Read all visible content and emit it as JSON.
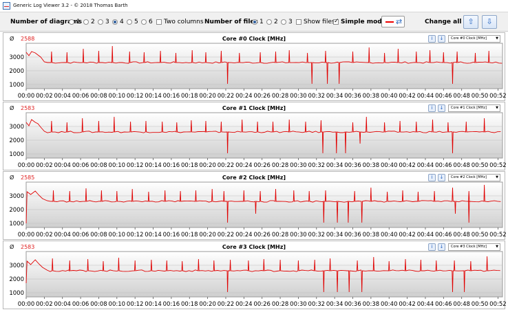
{
  "window": {
    "title": "Generic Log Viewer 3.2 - © 2018 Thomas Barth"
  },
  "toolbar": {
    "num_diagrams_label": "Number of diagrams",
    "diagram_options": [
      "1",
      "2",
      "3",
      "4",
      "5",
      "6"
    ],
    "diagram_selected": "4",
    "two_columns_label": "Two columns",
    "two_columns_checked": false,
    "num_files_label": "Number of files",
    "file_options": [
      "1",
      "2",
      "3"
    ],
    "file_selected": "1",
    "show_files_label": "Show files",
    "show_files_checked": false,
    "simple_mode_label": "Simple mode",
    "simple_mode_checked": true,
    "line_color": "#e00000",
    "change_all_label": "Change all",
    "icons": {
      "color": "swap-arrows-icon",
      "up": "arrow-up-icon",
      "down": "arrow-down-icon"
    }
  },
  "panels": [
    {
      "avg_symbol": "Ø",
      "avg": "2588",
      "title": "Core #0 Clock [MHz]",
      "selector": "Core #0 Clock [MHz]"
    },
    {
      "avg_symbol": "Ø",
      "avg": "2583",
      "title": "Core #1 Clock [MHz]",
      "selector": "Core #1 Clock [MHz]"
    },
    {
      "avg_symbol": "Ø",
      "avg": "2585",
      "title": "Core #2 Clock [MHz]",
      "selector": "Core #2 Clock [MHz]"
    },
    {
      "avg_symbol": "Ø",
      "avg": "2583",
      "title": "Core #3 Clock [MHz]",
      "selector": "Core #3 Clock [MHz]"
    }
  ],
  "chart_data": [
    {
      "type": "line",
      "title": "Core #0 Clock [MHz]",
      "y_ticks": [
        "3000",
        "2000",
        "1000"
      ],
      "x_ticks": [
        "00:00",
        "00:02",
        "00:04",
        "00:06",
        "00:08",
        "00:10",
        "00:12",
        "00:14",
        "00:16",
        "00:18",
        "00:20",
        "00:22",
        "00:24",
        "00:26",
        "00:28",
        "00:30",
        "00:32",
        "00:34",
        "00:36",
        "00:38",
        "00:40",
        "00:42",
        "00:44",
        "00:46",
        "00:48",
        "00:50",
        "00:52"
      ],
      "ylim": [
        700,
        4000
      ],
      "x_range_min": [
        0,
        52.5
      ],
      "start": [
        [
          0,
          3350
        ],
        [
          0.3,
          3100
        ],
        [
          0.6,
          3400
        ],
        [
          1.0,
          3300
        ],
        [
          1.3,
          3150
        ],
        [
          1.6,
          3000
        ],
        [
          2.0,
          2650
        ]
      ],
      "baseline": 2600,
      "spikes_up": [
        [
          2.8,
          3400
        ],
        [
          4.5,
          3350
        ],
        [
          6.3,
          3600
        ],
        [
          8.0,
          3450
        ],
        [
          9.5,
          3800
        ],
        [
          11.4,
          3400
        ],
        [
          13.0,
          3350
        ],
        [
          14.8,
          3450
        ],
        [
          16.5,
          3300
        ],
        [
          18.3,
          3500
        ],
        [
          19.8,
          3350
        ],
        [
          21.5,
          3450
        ],
        [
          23.5,
          3300
        ],
        [
          25.8,
          3350
        ],
        [
          27.5,
          3400
        ],
        [
          29.0,
          3500
        ],
        [
          31.0,
          3300
        ],
        [
          33.0,
          3450
        ],
        [
          36.0,
          3400
        ],
        [
          37.8,
          3700
        ],
        [
          39.5,
          3300
        ],
        [
          41.0,
          3600
        ],
        [
          43.0,
          3400
        ],
        [
          44.5,
          3500
        ],
        [
          46.0,
          3350
        ],
        [
          47.5,
          3400
        ],
        [
          49.5,
          3300
        ],
        [
          51.0,
          3450
        ]
      ],
      "spikes_down": [
        [
          22.2,
          1050
        ],
        [
          31.5,
          1050
        ],
        [
          33.2,
          1050
        ],
        [
          34.5,
          1050
        ],
        [
          47.0,
          1050
        ]
      ]
    },
    {
      "type": "line",
      "title": "Core #1 Clock [MHz]",
      "y_ticks": [
        "3000",
        "2000",
        "1000"
      ],
      "x_ticks": [
        "00:00",
        "00:02",
        "00:04",
        "00:06",
        "00:08",
        "00:10",
        "00:12",
        "00:14",
        "00:16",
        "00:18",
        "00:20",
        "00:22",
        "00:24",
        "00:26",
        "00:28",
        "00:30",
        "00:32",
        "00:34",
        "00:36",
        "00:38",
        "00:40",
        "00:42",
        "00:44",
        "00:46",
        "00:48",
        "00:50",
        "00:52"
      ],
      "ylim": [
        700,
        4000
      ],
      "x_range_min": [
        0,
        52.5
      ],
      "start": [
        [
          0,
          3300
        ],
        [
          0.3,
          3050
        ],
        [
          0.6,
          3500
        ],
        [
          1.0,
          3300
        ],
        [
          1.3,
          3200
        ],
        [
          1.6,
          2950
        ],
        [
          2.0,
          2650
        ]
      ],
      "baseline": 2600,
      "spikes_up": [
        [
          2.8,
          3400
        ],
        [
          4.5,
          3300
        ],
        [
          6.2,
          3600
        ],
        [
          8.0,
          3400
        ],
        [
          9.7,
          3700
        ],
        [
          11.5,
          3350
        ],
        [
          13.2,
          3400
        ],
        [
          15.0,
          3350
        ],
        [
          16.6,
          3300
        ],
        [
          18.2,
          3450
        ],
        [
          19.8,
          3400
        ],
        [
          21.5,
          3350
        ],
        [
          23.8,
          3500
        ],
        [
          25.5,
          3350
        ],
        [
          27.2,
          3350
        ],
        [
          29.0,
          3500
        ],
        [
          30.8,
          3350
        ],
        [
          32.5,
          3450
        ],
        [
          36.0,
          3300
        ],
        [
          37.5,
          3700
        ],
        [
          39.5,
          3300
        ],
        [
          41.2,
          3400
        ],
        [
          43.0,
          3350
        ],
        [
          44.8,
          3500
        ],
        [
          46.5,
          3300
        ],
        [
          48.5,
          3350
        ],
        [
          50.5,
          3600
        ]
      ],
      "spikes_down": [
        [
          22.2,
          1050
        ],
        [
          32.7,
          1050
        ],
        [
          34.2,
          1050
        ],
        [
          35.2,
          1050
        ],
        [
          36.8,
          1750
        ],
        [
          47.0,
          1050
        ]
      ]
    },
    {
      "type": "line",
      "title": "Core #2 Clock [MHz]",
      "y_ticks": [
        "3000",
        "2000",
        "1000"
      ],
      "x_ticks": [
        "00:00",
        "00:02",
        "00:04",
        "00:06",
        "00:08",
        "00:10",
        "00:12",
        "00:14",
        "00:16",
        "00:18",
        "00:20",
        "00:22",
        "00:24",
        "00:26",
        "00:28",
        "00:30",
        "00:32",
        "00:34",
        "00:36",
        "00:38",
        "00:40",
        "00:42",
        "00:44",
        "00:46",
        "00:48",
        "00:50",
        "00:52"
      ],
      "ylim": [
        700,
        4000
      ],
      "x_range_min": [
        0,
        52.5
      ],
      "start": [
        [
          0,
          1000
        ],
        [
          0.1,
          3300
        ],
        [
          0.5,
          3100
        ],
        [
          1.0,
          3350
        ],
        [
          1.4,
          3050
        ],
        [
          1.8,
          2800
        ],
        [
          2.3,
          2650
        ]
      ],
      "baseline": 2600,
      "spikes_up": [
        [
          3.0,
          3400
        ],
        [
          4.8,
          3350
        ],
        [
          6.6,
          3550
        ],
        [
          8.3,
          3400
        ],
        [
          10.0,
          3350
        ],
        [
          11.7,
          3500
        ],
        [
          13.5,
          3300
        ],
        [
          15.3,
          3400
        ],
        [
          17.0,
          3350
        ],
        [
          18.7,
          3400
        ],
        [
          20.5,
          3500
        ],
        [
          21.8,
          3350
        ],
        [
          24.0,
          3400
        ],
        [
          25.8,
          3350
        ],
        [
          27.5,
          3500
        ],
        [
          29.5,
          3400
        ],
        [
          31.2,
          3350
        ],
        [
          33.0,
          3400
        ],
        [
          36.2,
          3350
        ],
        [
          38.0,
          3600
        ],
        [
          39.8,
          3300
        ],
        [
          41.5,
          3400
        ],
        [
          43.2,
          3300
        ],
        [
          45.0,
          3350
        ],
        [
          47.0,
          3600
        ],
        [
          48.8,
          3350
        ],
        [
          50.5,
          3800
        ]
      ],
      "spikes_down": [
        [
          22.2,
          1050
        ],
        [
          25.3,
          1700
        ],
        [
          32.8,
          1050
        ],
        [
          34.3,
          1050
        ],
        [
          35.5,
          1050
        ],
        [
          37.0,
          1050
        ],
        [
          47.3,
          1700
        ],
        [
          48.8,
          1050
        ]
      ]
    },
    {
      "type": "line",
      "title": "Core #3 Clock [MHz]",
      "y_ticks": [
        "3000",
        "2000",
        "1000"
      ],
      "x_ticks": [
        "00:00",
        "00:02",
        "00:04",
        "00:06",
        "00:08",
        "00:10",
        "00:12",
        "00:14",
        "00:16",
        "00:18",
        "00:20",
        "00:22",
        "00:24",
        "00:26",
        "00:28",
        "00:30",
        "00:32",
        "00:34",
        "00:36",
        "00:38",
        "00:40",
        "00:42",
        "00:44",
        "00:46",
        "00:48",
        "00:50",
        "00:52"
      ],
      "ylim": [
        700,
        4000
      ],
      "x_range_min": [
        0,
        52.5
      ],
      "start": [
        [
          0,
          1700
        ],
        [
          0.1,
          3300
        ],
        [
          0.5,
          3050
        ],
        [
          1.0,
          3400
        ],
        [
          1.4,
          3100
        ],
        [
          1.8,
          2850
        ],
        [
          2.3,
          2650
        ]
      ],
      "baseline": 2600,
      "spikes_up": [
        [
          2.9,
          3500
        ],
        [
          4.8,
          3350
        ],
        [
          6.8,
          3450
        ],
        [
          8.5,
          3300
        ],
        [
          10.2,
          3550
        ],
        [
          12.0,
          3350
        ],
        [
          13.8,
          3400
        ],
        [
          15.5,
          3350
        ],
        [
          17.2,
          3300
        ],
        [
          19.0,
          3450
        ],
        [
          20.7,
          3350
        ],
        [
          22.5,
          3400
        ],
        [
          24.5,
          3350
        ],
        [
          26.2,
          3450
        ],
        [
          28.0,
          3400
        ],
        [
          30.0,
          3350
        ],
        [
          31.8,
          3400
        ],
        [
          33.5,
          3500
        ],
        [
          36.5,
          3350
        ],
        [
          38.3,
          3600
        ],
        [
          40.0,
          3300
        ],
        [
          41.8,
          3450
        ],
        [
          43.5,
          3400
        ],
        [
          45.2,
          3350
        ],
        [
          47.2,
          3350
        ],
        [
          49.0,
          3300
        ],
        [
          50.8,
          3650
        ]
      ],
      "spikes_down": [
        [
          22.2,
          1050
        ],
        [
          32.8,
          1050
        ],
        [
          34.3,
          1050
        ],
        [
          35.6,
          1050
        ],
        [
          37.0,
          1050
        ],
        [
          47.0,
          1050
        ],
        [
          48.3,
          1050
        ]
      ]
    }
  ]
}
